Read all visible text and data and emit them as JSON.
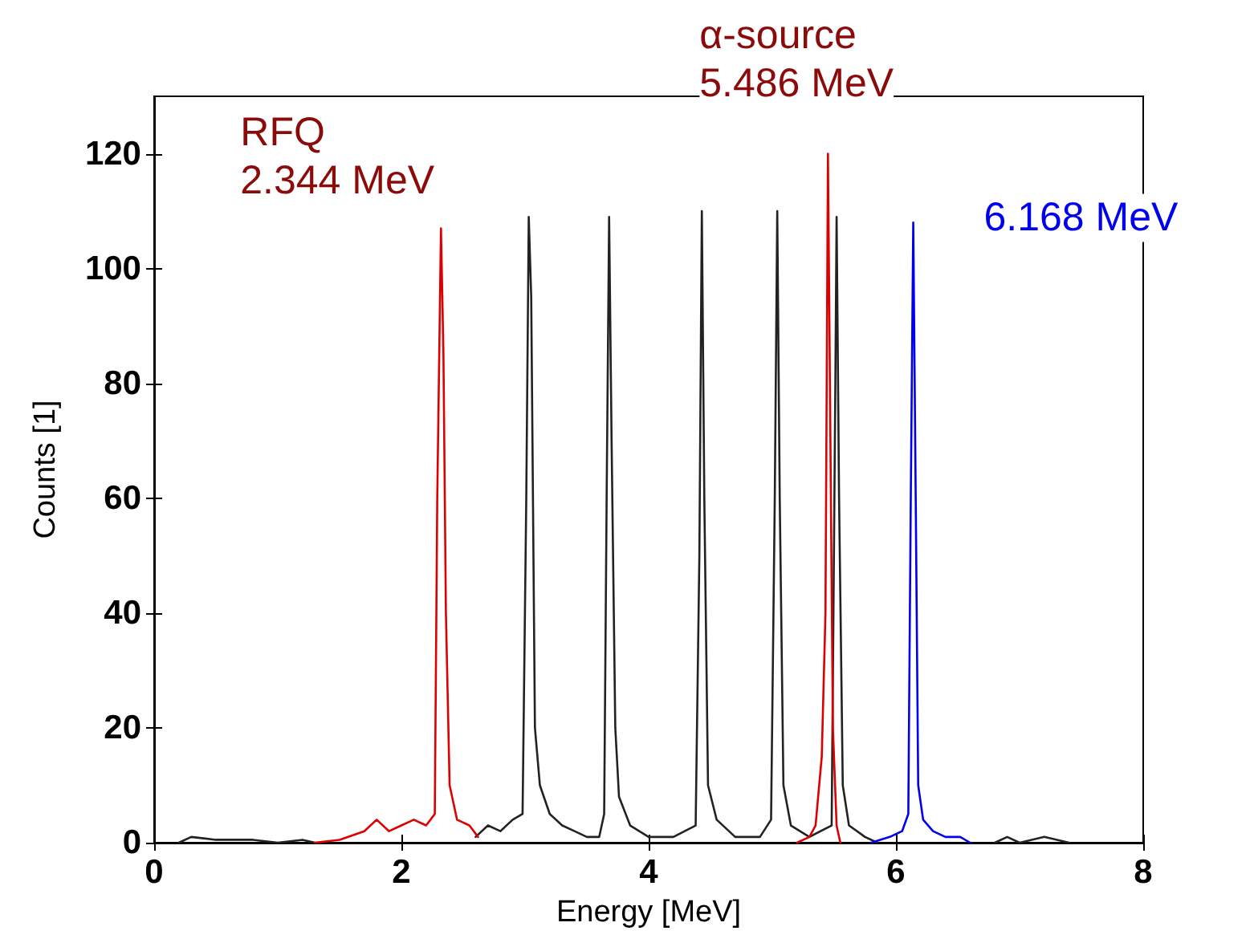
{
  "chart_data": {
    "type": "line",
    "xlabel": "Energy [MeV]",
    "ylabel": "Counts [1]",
    "xlim": [
      0,
      8
    ],
    "xticks": [
      0,
      2,
      4,
      6,
      8
    ],
    "ylim": [
      0,
      130
    ],
    "yticks": [
      0,
      20,
      40,
      60,
      80,
      100,
      120
    ],
    "grid": false,
    "marker": "none",
    "line_style": "solid",
    "annotations": [
      {
        "text": "RFQ\n2.344 MeV",
        "x": 2.32,
        "y": 107
      },
      {
        "text": "α-source\n5.486 MeV",
        "x": 5.45,
        "y": 120
      },
      {
        "text": "6.168 MeV",
        "x": 6.14,
        "y": 108
      }
    ],
    "series": [
      {
        "color": "#222222",
        "x": [
          0.2,
          0.3,
          0.5,
          0.8,
          1.0,
          1.2,
          1.3,
          1.31,
          2.6,
          2.7,
          2.8,
          2.9,
          2.98,
          3.01,
          3.03,
          3.05,
          3.08,
          3.12,
          3.2,
          3.3,
          3.4,
          3.5,
          3.6,
          3.64,
          3.66,
          3.68,
          3.7,
          3.73,
          3.76,
          3.85,
          4.0,
          4.2,
          4.38,
          4.41,
          4.43,
          4.45,
          4.48,
          4.55,
          4.7,
          4.9,
          4.99,
          5.02,
          5.04,
          5.06,
          5.09,
          5.15,
          5.3,
          5.48,
          5.51,
          5.52,
          5.54,
          5.57,
          5.62,
          5.75,
          5.85,
          5.86,
          6.8,
          6.9,
          7.0,
          7.2,
          7.4
        ],
        "values": [
          0,
          1,
          0.5,
          0.5,
          0,
          0.5,
          0,
          null,
          1,
          3,
          2,
          4,
          5,
          60,
          109,
          95,
          20,
          10,
          5,
          3,
          2,
          1,
          1,
          5,
          60,
          109,
          70,
          20,
          8,
          3,
          1,
          1,
          3,
          50,
          110,
          60,
          10,
          4,
          1,
          1,
          4,
          60,
          110,
          60,
          10,
          3,
          1,
          3,
          80,
          109,
          60,
          10,
          3,
          1,
          0,
          null,
          0,
          1,
          0,
          1,
          0
        ]
      },
      {
        "color": "#dd0000",
        "x": [
          1.3,
          1.5,
          1.7,
          1.8,
          1.9,
          2.0,
          2.1,
          2.2,
          2.27,
          2.29,
          2.32,
          2.34,
          2.36,
          2.39,
          2.45,
          2.55,
          2.62,
          2.63,
          5.2,
          5.3,
          5.35,
          5.4,
          5.43,
          5.45,
          5.47,
          5.49,
          5.52,
          5.55
        ],
        "values": [
          0,
          0.5,
          2,
          4,
          2,
          3,
          4,
          3,
          5,
          60,
          107,
          85,
          40,
          10,
          4,
          3,
          1,
          null,
          0,
          1,
          3,
          15,
          40,
          120,
          70,
          20,
          3,
          0
        ]
      },
      {
        "color": "#0000ee",
        "x": [
          5.8,
          5.95,
          6.05,
          6.1,
          6.12,
          6.14,
          6.16,
          6.18,
          6.22,
          6.3,
          6.4,
          6.52,
          6.6
        ],
        "values": [
          0,
          1,
          2,
          5,
          60,
          108,
          60,
          10,
          4,
          2,
          1,
          1,
          0
        ]
      }
    ]
  }
}
